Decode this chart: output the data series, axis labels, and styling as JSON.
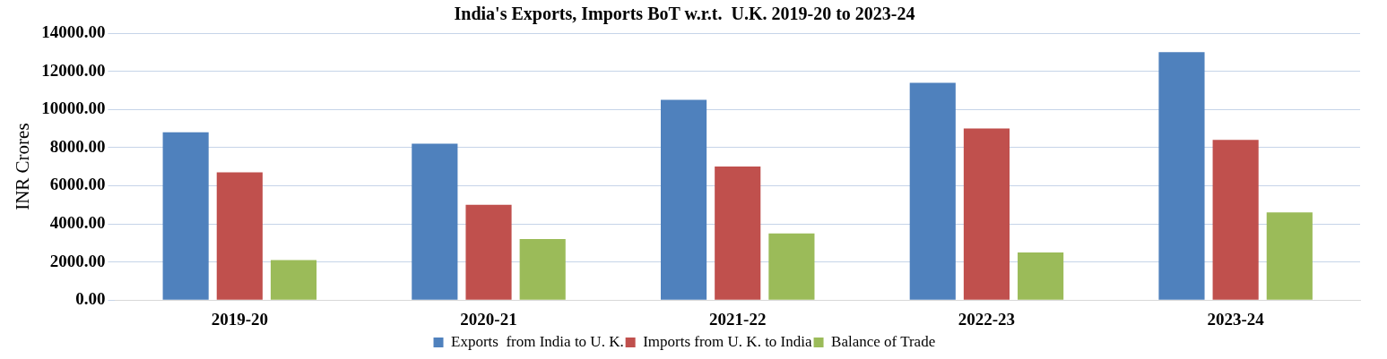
{
  "chart_data": {
    "type": "bar",
    "title": "India's Exports, Imports BoT w.r.t.  U.K. 2019-20 to 2023-24",
    "ylabel": "INR Crores",
    "categories": [
      "2019-20",
      "2020-21",
      "2021-22",
      "2022-23",
      "2023-24"
    ],
    "series": [
      {
        "name": "Exports  from India to U. K.",
        "color": "#4f81bd",
        "values": [
          8800,
          8200,
          10500,
          11400,
          13000
        ]
      },
      {
        "name": "Imports from U. K. to India",
        "color": "#c0504d",
        "values": [
          6700,
          5000,
          7000,
          9000,
          8400
        ]
      },
      {
        "name": "Balance of Trade",
        "color": "#9bbb59",
        "values": [
          2100,
          3200,
          3500,
          2500,
          4600
        ]
      }
    ],
    "ylim": [
      0,
      14000
    ],
    "yticks": [
      {
        "value": 0,
        "label": "0.00"
      },
      {
        "value": 2000,
        "label": "2000.00"
      },
      {
        "value": 4000,
        "label": "4000.00"
      },
      {
        "value": 6000,
        "label": "6000.00"
      },
      {
        "value": 8000,
        "label": "8000.00"
      },
      {
        "value": 10000,
        "label": "10000.00"
      },
      {
        "value": 12000,
        "label": "12000.00"
      },
      {
        "value": 14000,
        "label": "14000.00"
      }
    ],
    "grid": "y",
    "legend": "bottom"
  }
}
